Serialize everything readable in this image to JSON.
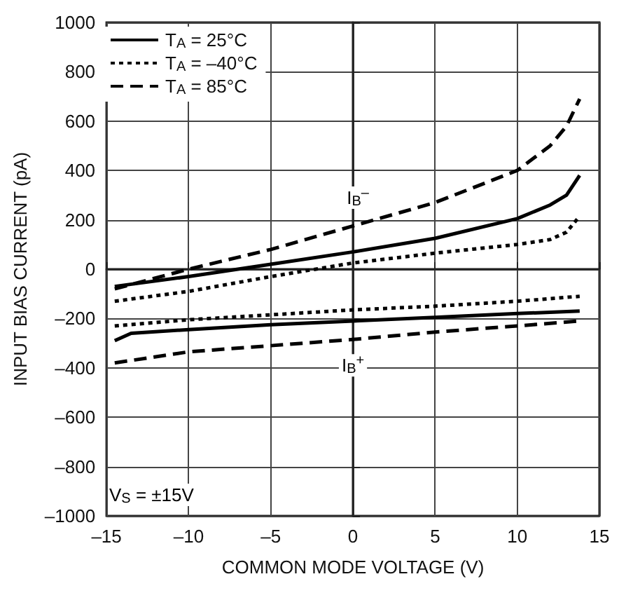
{
  "chart_data": {
    "type": "line",
    "xlabel": "COMMON MODE VOLTAGE (V)",
    "ylabel": "INPUT BIAS CURRENT (pA)",
    "xlim": [
      -15,
      15
    ],
    "xticks": [
      {
        "value": -15,
        "label": "–15"
      },
      {
        "value": -10,
        "label": "–10"
      },
      {
        "value": -5,
        "label": "–5"
      },
      0,
      5,
      10,
      15
    ],
    "ylim": [
      -1000,
      1000
    ],
    "yticks": [
      {
        "value": -1000,
        "label": "–1000"
      },
      {
        "value": -800,
        "label": "–800"
      },
      {
        "value": -600,
        "label": "–600"
      },
      {
        "value": -400,
        "label": "–400"
      },
      {
        "value": -200,
        "label": "–200"
      },
      0,
      200,
      400,
      600,
      800,
      1000
    ],
    "grid": true,
    "legend": "top left",
    "marker": "none",
    "series": [
      {
        "name": "T$_{A}$ = 25°C",
        "color": "#000000",
        "line_style": "solid",
        "x": [
          -14.5,
          -10,
          -5,
          0,
          5,
          10,
          12,
          13,
          13.8
        ],
        "values": [
          -70,
          -30,
          20,
          70,
          125,
          205,
          260,
          300,
          380
        ]
      },
      {
        "name": "T$_{A}$ = –40°C",
        "color": "#000000",
        "line_style": "dotted",
        "x": [
          -14.5,
          -10,
          -5,
          0,
          5,
          10,
          12,
          13,
          13.8
        ],
        "values": [
          -130,
          -90,
          -30,
          25,
          65,
          100,
          120,
          150,
          215
        ]
      },
      {
        "name": "T$_{A}$ = 85°C",
        "color": "#000000",
        "line_style": "dashed",
        "x": [
          -14.5,
          -10,
          -5,
          0,
          5,
          10,
          12,
          13,
          13.8
        ],
        "values": [
          -80,
          0,
          80,
          175,
          270,
          400,
          500,
          580,
          690
        ]
      },
      {
        "color": "#000000",
        "line_style": "solid",
        "x": [
          -14.5,
          -13.5,
          -10,
          -5,
          0,
          5,
          10,
          13.8
        ],
        "values": [
          -290,
          -260,
          -245,
          -225,
          -210,
          -195,
          -180,
          -170
        ]
      },
      {
        "color": "#000000",
        "line_style": "dotted",
        "x": [
          -14.5,
          -10,
          -5,
          0,
          5,
          10,
          13.8
        ],
        "values": [
          -230,
          -205,
          -185,
          -165,
          -150,
          -130,
          -110
        ]
      },
      {
        "color": "#000000",
        "line_style": "dashed",
        "x": [
          -14.5,
          -10,
          -5,
          0,
          5,
          10,
          13.8
        ],
        "values": [
          -380,
          -335,
          -310,
          -285,
          -255,
          -230,
          -210
        ]
      }
    ],
    "annotations": [
      {
        "text": "I$_{B}$$^{–}$",
        "x": 0.3,
        "y": 290
      },
      {
        "text": "I$_{B}$$^{+}$",
        "x": 0,
        "y": -390
      },
      "V$_{S}$ = ±15V"
    ]
  }
}
